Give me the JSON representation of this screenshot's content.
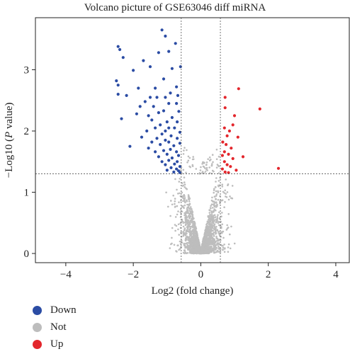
{
  "chart_data": {
    "type": "scatter",
    "title": "Volcano picture of GSE63046 diff miRNA",
    "xlabel": "Log2 (fold change)",
    "ylabel_prefix": "−Log10 (",
    "ylabel_italic": "P",
    "ylabel_suffix": " value)",
    "xlim": [
      -4.9,
      4.4
    ],
    "ylim": [
      -0.15,
      3.85
    ],
    "x_ticks": [
      -4,
      -2,
      0,
      2,
      4
    ],
    "x_tick_labels": [
      "−4",
      "−2",
      "0",
      "2",
      "4"
    ],
    "y_ticks": [
      0,
      1,
      2,
      3
    ],
    "y_tick_labels": [
      "0",
      "1",
      "2",
      "3"
    ],
    "thresholds": {
      "log2fc": [
        -0.58,
        0.58
      ],
      "neg_log10_p": 1.3
    },
    "colors": {
      "Down": "#2b4ca4",
      "Not": "#bdbdbd",
      "Up": "#e3262c"
    },
    "legend_position": "bottom-left",
    "series": [
      {
        "name": "Down",
        "points": [
          [
            -1.15,
            3.65
          ],
          [
            -1.05,
            3.55
          ],
          [
            -2.45,
            3.38
          ],
          [
            -2.4,
            3.33
          ],
          [
            -0.75,
            3.43
          ],
          [
            -0.95,
            3.3
          ],
          [
            -2.3,
            3.2
          ],
          [
            -1.25,
            3.28
          ],
          [
            -1.7,
            3.15
          ],
          [
            -0.6,
            3.05
          ],
          [
            -1.5,
            3.05
          ],
          [
            -0.85,
            3.02
          ],
          [
            -2.0,
            2.99
          ],
          [
            -2.5,
            2.82
          ],
          [
            -2.45,
            2.75
          ],
          [
            -1.1,
            2.85
          ],
          [
            -0.72,
            2.72
          ],
          [
            -1.85,
            2.7
          ],
          [
            -1.35,
            2.7
          ],
          [
            -0.9,
            2.62
          ],
          [
            -2.45,
            2.6
          ],
          [
            -2.2,
            2.58
          ],
          [
            -0.68,
            2.58
          ],
          [
            -1.5,
            2.55
          ],
          [
            -1.3,
            2.55
          ],
          [
            -1.05,
            2.55
          ],
          [
            -1.65,
            2.48
          ],
          [
            -0.95,
            2.45
          ],
          [
            -1.8,
            2.4
          ],
          [
            -1.4,
            2.4
          ],
          [
            -0.72,
            2.45
          ],
          [
            -1.1,
            2.33
          ],
          [
            -1.25,
            2.3
          ],
          [
            -0.65,
            2.32
          ],
          [
            -1.9,
            2.28
          ],
          [
            -1.55,
            2.25
          ],
          [
            -0.85,
            2.22
          ],
          [
            -2.35,
            2.2
          ],
          [
            -1.45,
            2.18
          ],
          [
            -1.0,
            2.15
          ],
          [
            -0.7,
            2.15
          ],
          [
            -1.2,
            2.1
          ],
          [
            -0.95,
            2.05
          ],
          [
            -1.35,
            2.05
          ],
          [
            -0.78,
            2.05
          ],
          [
            -1.05,
            2.0
          ],
          [
            -0.62,
            1.98
          ],
          [
            -1.6,
            2.0
          ],
          [
            -1.15,
            1.95
          ],
          [
            -0.88,
            1.92
          ],
          [
            -1.75,
            1.9
          ],
          [
            -1.3,
            1.88
          ],
          [
            -0.7,
            1.88
          ],
          [
            -1.05,
            1.85
          ],
          [
            -0.95,
            1.82
          ],
          [
            -1.45,
            1.82
          ],
          [
            -0.62,
            1.8
          ],
          [
            -1.2,
            1.78
          ],
          [
            -0.8,
            1.76
          ],
          [
            -2.1,
            1.75
          ],
          [
            -1.55,
            1.72
          ],
          [
            -0.9,
            1.7
          ],
          [
            -1.1,
            1.68
          ],
          [
            -0.72,
            1.66
          ],
          [
            -1.35,
            1.66
          ],
          [
            -1.0,
            1.62
          ],
          [
            -0.66,
            1.6
          ],
          [
            -1.25,
            1.58
          ],
          [
            -0.85,
            1.56
          ],
          [
            -0.95,
            1.52
          ],
          [
            -1.15,
            1.5
          ],
          [
            -0.7,
            1.5
          ],
          [
            -0.78,
            1.46
          ],
          [
            -1.05,
            1.45
          ],
          [
            -0.62,
            1.42
          ],
          [
            -0.88,
            1.4
          ],
          [
            -0.72,
            1.38
          ],
          [
            -1.0,
            1.36
          ],
          [
            -0.66,
            1.35
          ],
          [
            -0.8,
            1.33
          ],
          [
            -0.62,
            1.32
          ]
        ]
      },
      {
        "name": "Up",
        "points": [
          [
            1.12,
            2.69
          ],
          [
            0.72,
            2.55
          ],
          [
            1.75,
            2.36
          ],
          [
            0.72,
            2.38
          ],
          [
            1.0,
            2.25
          ],
          [
            0.95,
            2.1
          ],
          [
            0.7,
            2.05
          ],
          [
            0.85,
            2.0
          ],
          [
            0.78,
            1.92
          ],
          [
            1.1,
            1.9
          ],
          [
            0.65,
            1.82
          ],
          [
            0.75,
            1.78
          ],
          [
            0.9,
            1.72
          ],
          [
            0.7,
            1.66
          ],
          [
            0.82,
            1.62
          ],
          [
            0.64,
            1.6
          ],
          [
            1.25,
            1.58
          ],
          [
            0.95,
            1.55
          ],
          [
            0.7,
            1.5
          ],
          [
            0.78,
            1.45
          ],
          [
            0.88,
            1.42
          ],
          [
            2.3,
            1.39
          ],
          [
            0.64,
            1.38
          ],
          [
            1.05,
            1.36
          ],
          [
            0.72,
            1.33
          ],
          [
            0.82,
            1.32
          ]
        ]
      }
    ]
  }
}
